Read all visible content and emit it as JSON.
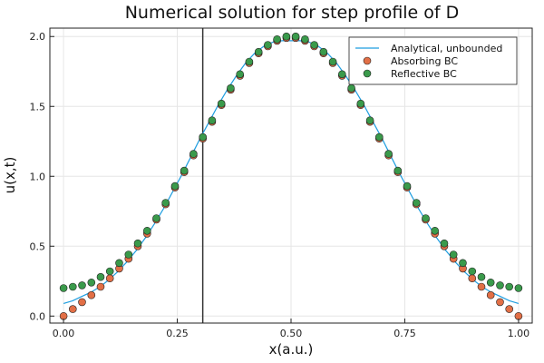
{
  "chart_data": {
    "type": "scatter",
    "title": "Numerical solution for step profile of D",
    "xlabel": "x(a.u.)",
    "ylabel": "u(x,t)",
    "xlim": [
      -0.03,
      1.03
    ],
    "ylim": [
      -0.05,
      2.06
    ],
    "xticks": [
      "0.00",
      "0.25",
      "0.50",
      "0.75",
      "1.00"
    ],
    "xtick_values": [
      0,
      0.25,
      0.5,
      0.75,
      1.0
    ],
    "yticks": [
      "0.0",
      "0.5",
      "1.0",
      "1.5",
      "2.0"
    ],
    "ytick_values": [
      0,
      0.5,
      1.0,
      1.5,
      2.0
    ],
    "grid": true,
    "legend_position": "top-right",
    "vline_x": 0.306,
    "series": [
      {
        "name": "Analytical, unbounded",
        "kind": "line",
        "color": "#1f9ee0",
        "x": [
          0.0,
          0.02,
          0.04,
          0.06,
          0.08,
          0.1,
          0.12,
          0.14,
          0.16,
          0.18,
          0.2,
          0.22,
          0.24,
          0.26,
          0.28,
          0.3,
          0.32,
          0.34,
          0.36,
          0.38,
          0.4,
          0.42,
          0.44,
          0.46,
          0.48,
          0.5,
          0.52,
          0.54,
          0.56,
          0.58,
          0.6,
          0.62,
          0.64,
          0.66,
          0.68,
          0.7,
          0.72,
          0.74,
          0.76,
          0.78,
          0.8,
          0.82,
          0.84,
          0.86,
          0.88,
          0.9,
          0.92,
          0.94,
          0.96,
          0.98,
          1.0
        ],
        "y": [
          0.09,
          0.11,
          0.14,
          0.17,
          0.21,
          0.26,
          0.32,
          0.39,
          0.47,
          0.56,
          0.66,
          0.77,
          0.89,
          1.01,
          1.14,
          1.27,
          1.39,
          1.51,
          1.62,
          1.72,
          1.81,
          1.88,
          1.93,
          1.96,
          1.97,
          1.97,
          1.97,
          1.96,
          1.93,
          1.88,
          1.81,
          1.72,
          1.62,
          1.51,
          1.39,
          1.27,
          1.14,
          1.01,
          0.89,
          0.77,
          0.66,
          0.56,
          0.47,
          0.39,
          0.32,
          0.26,
          0.21,
          0.17,
          0.14,
          0.11,
          0.09
        ]
      },
      {
        "name": "Absorbing BC",
        "kind": "scatter",
        "color": "#e26f46",
        "x": [
          0.0,
          0.0204,
          0.0408,
          0.0612,
          0.0816,
          0.102,
          0.1224,
          0.1429,
          0.1633,
          0.1837,
          0.2041,
          0.2245,
          0.2449,
          0.2653,
          0.2857,
          0.3061,
          0.3265,
          0.3469,
          0.3673,
          0.3878,
          0.4082,
          0.4286,
          0.449,
          0.4694,
          0.4898,
          0.5102,
          0.5306,
          0.551,
          0.5714,
          0.5918,
          0.6122,
          0.6327,
          0.6531,
          0.6735,
          0.6939,
          0.7143,
          0.7347,
          0.7551,
          0.7755,
          0.7959,
          0.8163,
          0.8367,
          0.8571,
          0.8776,
          0.898,
          0.9184,
          0.9388,
          0.9592,
          0.9796,
          1.0
        ],
        "y": [
          0.0,
          0.05,
          0.1,
          0.15,
          0.21,
          0.27,
          0.34,
          0.41,
          0.5,
          0.59,
          0.69,
          0.8,
          0.92,
          1.03,
          1.15,
          1.27,
          1.39,
          1.51,
          1.62,
          1.72,
          1.81,
          1.88,
          1.93,
          1.97,
          1.99,
          1.99,
          1.97,
          1.93,
          1.88,
          1.81,
          1.72,
          1.62,
          1.51,
          1.39,
          1.27,
          1.15,
          1.03,
          0.92,
          0.8,
          0.69,
          0.59,
          0.5,
          0.41,
          0.34,
          0.27,
          0.21,
          0.15,
          0.1,
          0.05,
          0.0
        ]
      },
      {
        "name": "Reflective BC",
        "kind": "scatter",
        "color": "#3a9a4b",
        "x": [
          0.0,
          0.0204,
          0.0408,
          0.0612,
          0.0816,
          0.102,
          0.1224,
          0.1429,
          0.1633,
          0.1837,
          0.2041,
          0.2245,
          0.2449,
          0.2653,
          0.2857,
          0.3061,
          0.3265,
          0.3469,
          0.3673,
          0.3878,
          0.4082,
          0.4286,
          0.449,
          0.4694,
          0.4898,
          0.5102,
          0.5306,
          0.551,
          0.5714,
          0.5918,
          0.6122,
          0.6327,
          0.6531,
          0.6735,
          0.6939,
          0.7143,
          0.7347,
          0.7551,
          0.7755,
          0.7959,
          0.8163,
          0.8367,
          0.8571,
          0.8776,
          0.898,
          0.9184,
          0.9388,
          0.9592,
          0.9796,
          1.0
        ],
        "y": [
          0.2,
          0.21,
          0.22,
          0.24,
          0.28,
          0.32,
          0.38,
          0.44,
          0.52,
          0.61,
          0.7,
          0.81,
          0.93,
          1.04,
          1.16,
          1.28,
          1.4,
          1.52,
          1.63,
          1.73,
          1.82,
          1.89,
          1.94,
          1.98,
          2.0,
          2.0,
          1.98,
          1.94,
          1.89,
          1.82,
          1.73,
          1.63,
          1.52,
          1.4,
          1.28,
          1.16,
          1.04,
          0.93,
          0.81,
          0.7,
          0.61,
          0.52,
          0.44,
          0.38,
          0.32,
          0.28,
          0.24,
          0.22,
          0.21,
          0.2
        ]
      }
    ]
  }
}
